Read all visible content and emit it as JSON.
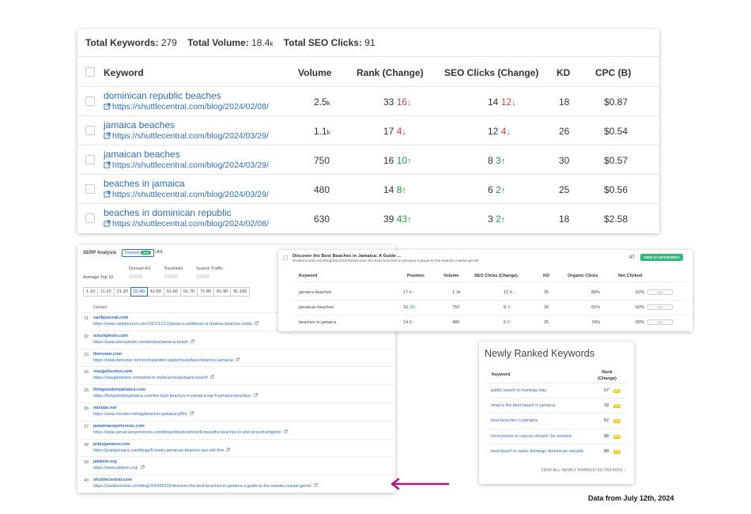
{
  "summary": {
    "keywords_label": "Total Keywords:",
    "keywords_value": "279",
    "volume_label": "Total Volume:",
    "volume_value": "18.4",
    "volume_unit": "k",
    "clicks_label": "Total SEO Clicks:",
    "clicks_value": "91"
  },
  "table": {
    "headers": {
      "keyword": "Keyword",
      "volume": "Volume",
      "rank": "Rank (Change)",
      "seo": "SEO Clicks (Change)",
      "kd": "KD",
      "cpc": "CPC (B)"
    },
    "rows": [
      {
        "keyword": "dominican republic beaches",
        "url": "https://shuttlecentral.com/blog/2024/02/08/",
        "volume": "2.5",
        "volume_unit": "k",
        "rank": "33",
        "rank_change": "16",
        "rank_dir": "down",
        "seo": "14",
        "seo_change": "12",
        "seo_dir": "down",
        "kd": "18",
        "cpc": "$0.87"
      },
      {
        "keyword": "jamaica beaches",
        "url": "https://shuttlecentral.com/blog/2024/03/29/",
        "volume": "1.1",
        "volume_unit": "k",
        "rank": "17",
        "rank_change": "4",
        "rank_dir": "down",
        "seo": "12",
        "seo_change": "4",
        "seo_dir": "down",
        "kd": "26",
        "cpc": "$0.54"
      },
      {
        "keyword": "jamaican beaches",
        "url": "https://shuttlecentral.com/blog/2024/03/29/",
        "volume": "750",
        "volume_unit": "",
        "rank": "16",
        "rank_change": "10",
        "rank_dir": "up",
        "seo": "8",
        "seo_change": "3",
        "seo_dir": "up",
        "kd": "30",
        "cpc": "$0.57"
      },
      {
        "keyword": "beaches in jamaica",
        "url": "https://shuttlecentral.com/blog/2024/03/29/",
        "volume": "480",
        "volume_unit": "",
        "rank": "14",
        "rank_change": "8",
        "rank_dir": "up",
        "seo": "6",
        "seo_change": "2",
        "seo_dir": "up",
        "kd": "25",
        "cpc": "$0.56"
      },
      {
        "keyword": "beaches in dominican republic",
        "url": "https://shuttlecentral.com/blog/2024/02/08/",
        "volume": "630",
        "volume_unit": "",
        "rank": "39",
        "rank_change": "43",
        "rank_dir": "up",
        "seo": "3",
        "seo_change": "2",
        "seo_dir": "up",
        "kd": "18",
        "cpc": "$2.58"
      }
    ]
  },
  "serp": {
    "title": "SERP Analysis",
    "domain_tab": "Domain",
    "new_badge": "new",
    "url_tab": "URL",
    "col_domain_as": "Domain AS",
    "col_backlinks": "Backlinks",
    "col_traffic": "Search Traffic",
    "average_label": "Average Top 10",
    "pages": [
      "1-10",
      "11-20",
      "21-30",
      "31-40",
      "41-50",
      "51-60",
      "61-70",
      "71-80",
      "81-90",
      "91-100"
    ],
    "active_page": "31-40",
    "domain_header": "Domain",
    "results": [
      {
        "n": "31",
        "domain": "caribjournal.com",
        "url": "https://www.caribjournal.com/2021/11/12/jamaica-caribbean-st-thomas-beaches-hidde"
      },
      {
        "n": "32",
        "domain": "istockphoto.com",
        "url": "https://www.istockphoto.com/photos/jamaica-beach"
      },
      {
        "n": "33",
        "domain": "iberostar.com",
        "url": "https://www.iberostar.com/en/inspiration-guide/travel/best-beaches-jamaica/"
      },
      {
        "n": "34",
        "domain": "staygalveston.com",
        "url": "https://staygalveston.com/what-to-do/beaches/jamaica-beach/"
      },
      {
        "n": "35",
        "domain": "thingstodoinjamaica.com",
        "url": "https://thingstodoinjamaica.com/the-best-beaches-in-jamaica-top-5-jamaica-beaches/"
      },
      {
        "n": "36",
        "domain": "minube.net",
        "url": "https://www.minube.net/tag/beaches-jamaica-p491"
      },
      {
        "n": "37",
        "domain": "jamaicaexperiences.com",
        "url": "https://www.jamaicaexperiences.com/blogs/details/article/8-beautiful-beaches-in-and-around-kingston"
      },
      {
        "n": "38",
        "domain": "pripsjamaica.com",
        "url": "https://pripsjamaica.com/blogs/5-lovely-jamaican-beaches-are-still-free"
      },
      {
        "n": "39",
        "domain": "jabbem.org",
        "url": "https://www.jabbem.org/"
      },
      {
        "n": "40",
        "domain": "shuttlecentral.com",
        "url": "https://shuttlecentral.com/blog/2024/03/29/discover-the-best-beaches-in-jamaica-a-guide-to-the-islands-coastal-gems/"
      }
    ]
  },
  "discover": {
    "title": "Discover the Best Beaches in Jamaica: A Guide ...",
    "url": "shuttlecentral.com/blog/2024/03/29/discover-the-best-beaches-in-jamaica-a-guide-to-the-islands-coastal-gems/",
    "count": "47",
    "button": "VIEW 47 KEYWORDS",
    "headers": {
      "keyword": "Keyword",
      "position": "Position",
      "volume": "Volume",
      "seo": "SEO Clicks (Change)",
      "kd": "KD",
      "organic": "Organic Clicks",
      "notclicked": "Not Clicked"
    },
    "rows": [
      {
        "keyword": "jamaica beaches",
        "position": "17",
        "pos_change": "4",
        "pos_dir": "down",
        "volume": "1.1k",
        "seo": "12",
        "seo_change": "4",
        "seo_dir": "down",
        "kd": "26",
        "organic": "89%",
        "notclicked": "62%",
        "add": "ADD"
      },
      {
        "keyword": "jamaican beaches",
        "position": "16",
        "pos_change": "10",
        "pos_dir": "up",
        "volume": "750",
        "seo": "8",
        "seo_change": "3",
        "seo_dir": "up",
        "kd": "30",
        "organic": "91%",
        "notclicked": "62%",
        "add": "ADD"
      },
      {
        "keyword": "beaches in jamaica",
        "position": "14",
        "pos_change": "8",
        "pos_dir": "up",
        "volume": "480",
        "seo": "6",
        "seo_change": "2",
        "seo_dir": "up",
        "kd": "25",
        "organic": "74%",
        "notclicked": "65%",
        "add": "ADD"
      }
    ]
  },
  "newly": {
    "title": "Newly Ranked Keywords",
    "keyword_header": "Keyword",
    "rank_header_1": "Rank",
    "rank_header_2": "(Change)",
    "rows": [
      {
        "keyword": "public beach in montego bay",
        "rank": "57",
        "badge": "NEW"
      },
      {
        "keyword": "what is the best beach in jamaica",
        "rank": "18",
        "badge": "NEW"
      },
      {
        "keyword": "best beaches in jamaica",
        "rank": "52",
        "badge": "NEW"
      },
      {
        "keyword": "honeymoon in cancun should i be worried",
        "rank": "88",
        "badge": "NEW"
      },
      {
        "keyword": "best beach in santo domingo dominican republic",
        "rank": "88",
        "badge": "NEW"
      }
    ],
    "view_all": "VIEW ALL NEWLY RANKED KEYWORDS"
  },
  "footnote": "Data from July 12th, 2024",
  "colors": {
    "link": "#2e6cb5",
    "up": "#1f9d40",
    "down": "#d93b3b",
    "arrow": "#b0168a",
    "accent": "#31b77a"
  },
  "icons": {
    "external": "external-link-icon",
    "up": "arrow-up-icon",
    "down": "arrow-down-icon"
  }
}
